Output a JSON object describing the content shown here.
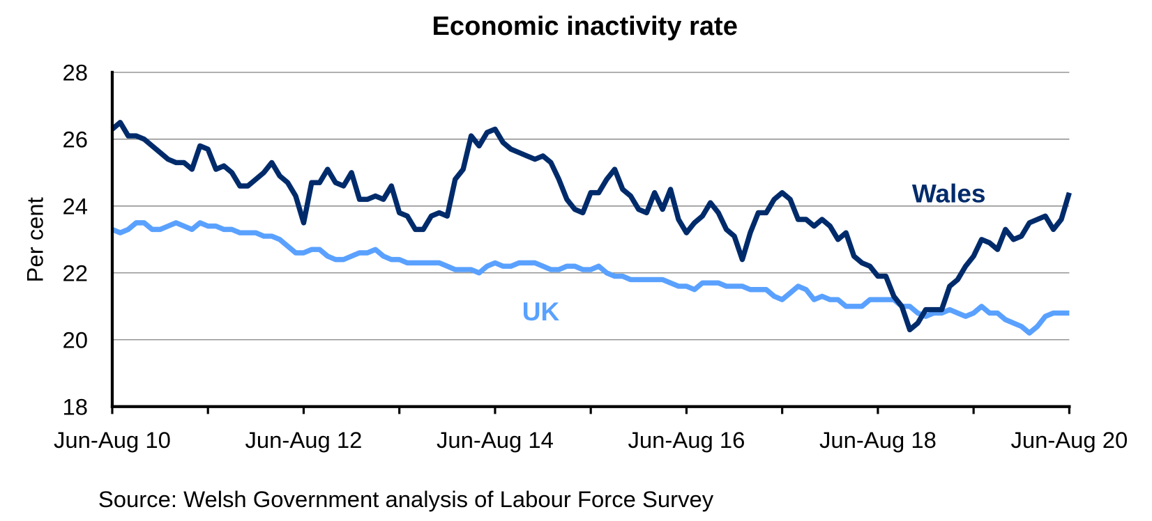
{
  "chart_data": {
    "type": "line",
    "title": "Economic inactivity rate",
    "xlabel": "",
    "ylabel": "Per cent",
    "ylim": [
      18,
      28
    ],
    "yticks": [
      "18",
      "20",
      "22",
      "24",
      "26",
      "28"
    ],
    "ytick_values": [
      18,
      20,
      22,
      24,
      26,
      28
    ],
    "grid": true,
    "x_count": 121,
    "xtick_labels": [
      {
        "index": 0,
        "label": "Jun-Aug 10"
      },
      {
        "index": 24,
        "label": "Jun-Aug 12"
      },
      {
        "index": 48,
        "label": "Jun-Aug 14"
      },
      {
        "index": 72,
        "label": "Jun-Aug 16"
      },
      {
        "index": 96,
        "label": "Jun-Aug 18"
      },
      {
        "index": 120,
        "label": "Jun-Aug 20"
      }
    ],
    "xtick_marks": [
      0,
      12,
      24,
      36,
      48,
      60,
      72,
      84,
      96,
      108,
      120
    ],
    "series": [
      {
        "name": "Wales",
        "label": "Wales",
        "color": "#002b6b",
        "values": [
          26.3,
          26.5,
          26.1,
          26.1,
          26.0,
          25.8,
          25.6,
          25.4,
          25.3,
          25.3,
          25.1,
          25.8,
          25.7,
          25.1,
          25.2,
          25.0,
          24.6,
          24.6,
          24.8,
          25.0,
          25.3,
          24.9,
          24.7,
          24.3,
          23.5,
          24.7,
          24.7,
          25.1,
          24.7,
          24.6,
          25.0,
          24.2,
          24.2,
          24.3,
          24.2,
          24.6,
          23.8,
          23.7,
          23.3,
          23.3,
          23.7,
          23.8,
          23.7,
          24.8,
          25.1,
          26.1,
          25.8,
          26.2,
          26.3,
          25.9,
          25.7,
          25.6,
          25.5,
          25.4,
          25.5,
          25.3,
          24.8,
          24.2,
          23.9,
          23.8,
          24.4,
          24.4,
          24.8,
          25.1,
          24.5,
          24.3,
          23.9,
          23.8,
          24.4,
          23.9,
          24.5,
          23.6,
          23.2,
          23.5,
          23.7,
          24.1,
          23.8,
          23.3,
          23.1,
          22.4,
          23.2,
          23.8,
          23.8,
          24.2,
          24.4,
          24.2,
          23.6,
          23.6,
          23.4,
          23.6,
          23.4,
          23.0,
          23.2,
          22.5,
          22.3,
          22.2,
          21.9,
          21.9,
          21.3,
          21.0,
          20.3,
          20.5,
          20.9,
          20.9,
          20.9,
          21.6,
          21.8,
          22.2,
          22.5,
          23.0,
          22.9,
          22.7,
          23.3,
          23.0,
          23.1,
          23.5,
          23.6,
          23.7,
          23.3,
          23.6,
          24.4
        ]
      },
      {
        "name": "UK",
        "label": "UK",
        "color": "#5aa1ff",
        "values": [
          23.3,
          23.2,
          23.3,
          23.5,
          23.5,
          23.3,
          23.3,
          23.4,
          23.5,
          23.4,
          23.3,
          23.5,
          23.4,
          23.4,
          23.3,
          23.3,
          23.2,
          23.2,
          23.2,
          23.1,
          23.1,
          23.0,
          22.8,
          22.6,
          22.6,
          22.7,
          22.7,
          22.5,
          22.4,
          22.4,
          22.5,
          22.6,
          22.6,
          22.7,
          22.5,
          22.4,
          22.4,
          22.3,
          22.3,
          22.3,
          22.3,
          22.3,
          22.2,
          22.1,
          22.1,
          22.1,
          22.0,
          22.2,
          22.3,
          22.2,
          22.2,
          22.3,
          22.3,
          22.3,
          22.2,
          22.1,
          22.1,
          22.2,
          22.2,
          22.1,
          22.1,
          22.2,
          22.0,
          21.9,
          21.9,
          21.8,
          21.8,
          21.8,
          21.8,
          21.8,
          21.7,
          21.6,
          21.6,
          21.5,
          21.7,
          21.7,
          21.7,
          21.6,
          21.6,
          21.6,
          21.5,
          21.5,
          21.5,
          21.3,
          21.2,
          21.4,
          21.6,
          21.5,
          21.2,
          21.3,
          21.2,
          21.2,
          21.0,
          21.0,
          21.0,
          21.2,
          21.2,
          21.2,
          21.2,
          21.0,
          21.0,
          20.8,
          20.7,
          20.8,
          20.8,
          20.9,
          20.8,
          20.7,
          20.8,
          21.0,
          20.8,
          20.8,
          20.6,
          20.5,
          20.4,
          20.2,
          20.4,
          20.7,
          20.8,
          20.8,
          20.8
        ]
      }
    ],
    "source": "Source: Welsh Government analysis of Labour Force Survey",
    "colors": {
      "axis": "#000000",
      "grid": "#808080"
    }
  }
}
